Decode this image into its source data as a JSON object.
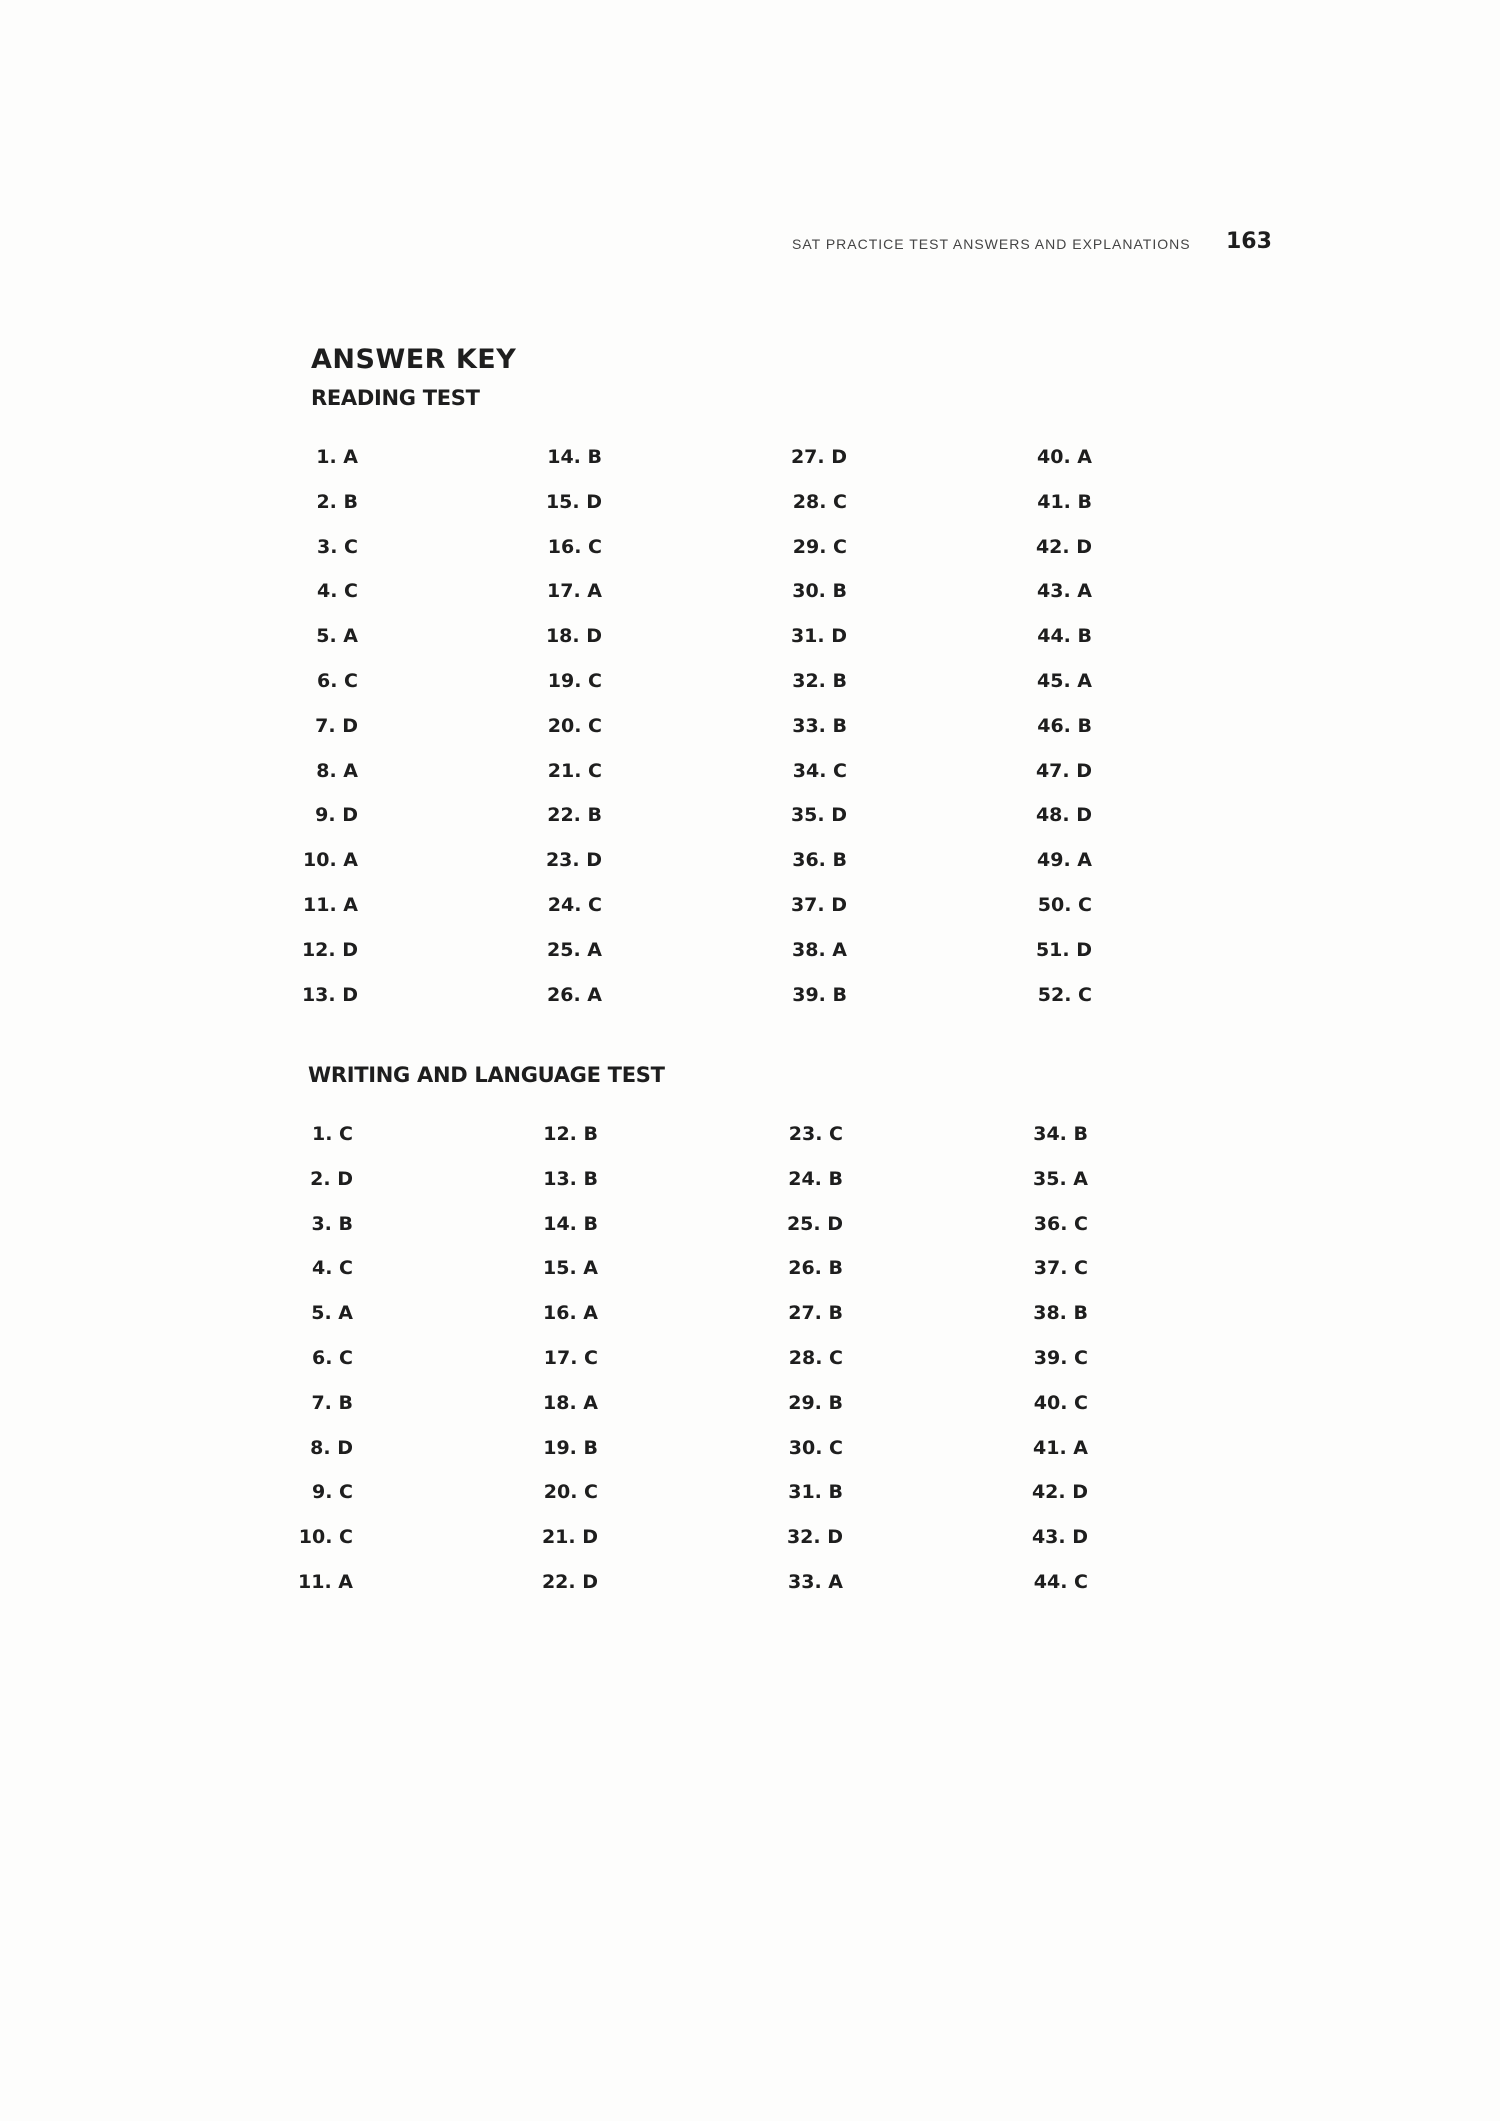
{
  "header": {
    "running_title": "SAT PRACTICE TEST ANSWERS AND EXPLANATIONS",
    "page_number": "163"
  },
  "title": "ANSWER KEY",
  "reading": {
    "heading": "READING TEST",
    "answers": [
      "1. A",
      "2. B",
      "3. C",
      "4. C",
      "5. A",
      "6. C",
      "7. D",
      "8. A",
      "9. D",
      "10. A",
      "11. A",
      "12. D",
      "13. D",
      "14. B",
      "15. D",
      "16. C",
      "17. A",
      "18. D",
      "19. C",
      "20. C",
      "21. C",
      "22. B",
      "23. D",
      "24. C",
      "25. A",
      "26. A",
      "27. D",
      "28. C",
      "29. C",
      "30. B",
      "31. D",
      "32. B",
      "33. B",
      "34. C",
      "35. D",
      "36. B",
      "37. D",
      "38. A",
      "39. B",
      "40. A",
      "41. B",
      "42. D",
      "43. A",
      "44. B",
      "45. A",
      "46. B",
      "47. D",
      "48. D",
      "49. A",
      "50. C",
      "51. D",
      "52. C"
    ]
  },
  "writing": {
    "heading": "WRITING AND LANGUAGE TEST",
    "answers": [
      "1. C",
      "2. D",
      "3. B",
      "4. C",
      "5. A",
      "6. C",
      "7. B",
      "8. D",
      "9. C",
      "10. C",
      "11. A",
      "12. B",
      "13. B",
      "14. B",
      "15. A",
      "16. A",
      "17. C",
      "18. A",
      "19. B",
      "20. C",
      "21. D",
      "22. D",
      "23. C",
      "24. B",
      "25. D",
      "26. B",
      "27. B",
      "28. C",
      "29. B",
      "30. C",
      "31. B",
      "32. D",
      "33. A",
      "34. B",
      "35. A",
      "36. C",
      "37. C",
      "38. B",
      "39. C",
      "40. C",
      "41. A",
      "42. D",
      "43. D",
      "44. C"
    ]
  }
}
